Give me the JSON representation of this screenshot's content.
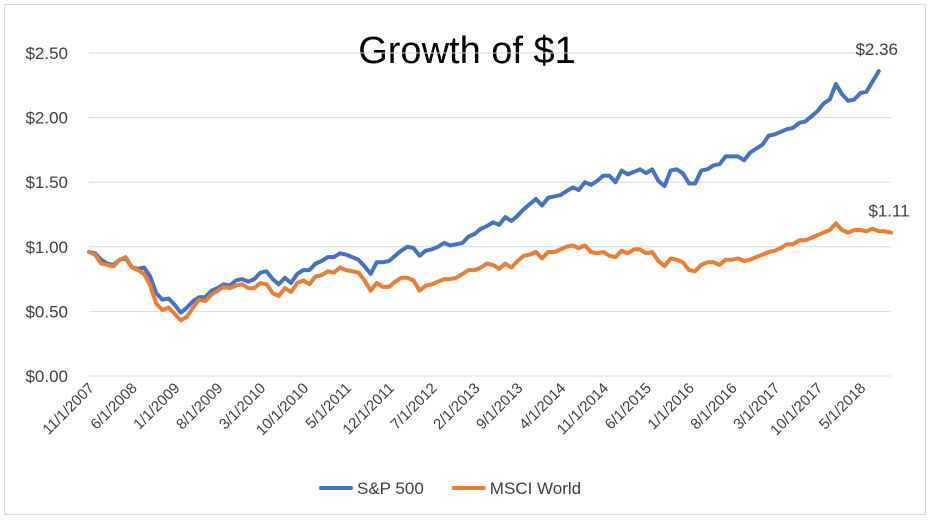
{
  "chart_data": {
    "type": "line",
    "title": "Growth of $1",
    "xlabel": "",
    "ylabel": "",
    "ylim": [
      0,
      2.5
    ],
    "y_ticks": [
      "$0.00",
      "$0.50",
      "$1.00",
      "$1.50",
      "$2.00",
      "$2.50"
    ],
    "y_tick_values": [
      0,
      0.5,
      1.0,
      1.5,
      2.0,
      2.5
    ],
    "x_start": "11/1/2007",
    "x_end": "10/1/2018",
    "x_ticks": [
      "11/1/2007",
      "6/1/2008",
      "1/1/2009",
      "8/1/2009",
      "3/1/2010",
      "10/1/2010",
      "5/1/2011",
      "12/1/2011",
      "7/1/2012",
      "2/1/2013",
      "9/1/2013",
      "4/1/2014",
      "11/1/2014",
      "6/1/2015",
      "1/1/2016",
      "8/1/2016",
      "3/1/2017",
      "10/1/2017",
      "5/1/2018"
    ],
    "grid": "horizontal",
    "legend": "bottom",
    "series": [
      {
        "name": "S&P 500",
        "color": "#4472C4",
        "end_label": "$2.36",
        "points": [
          [
            "11/1/2007",
            0.96
          ],
          [
            "12/1/2007",
            0.95
          ],
          [
            "1/1/2008",
            0.9
          ],
          [
            "2/1/2008",
            0.87
          ],
          [
            "3/1/2008",
            0.86
          ],
          [
            "4/1/2008",
            0.9
          ],
          [
            "5/1/2008",
            0.91
          ],
          [
            "6/1/2008",
            0.84
          ],
          [
            "7/1/2008",
            0.83
          ],
          [
            "8/1/2008",
            0.84
          ],
          [
            "9/1/2008",
            0.77
          ],
          [
            "10/1/2008",
            0.64
          ],
          [
            "11/1/2008",
            0.59
          ],
          [
            "12/1/2008",
            0.6
          ],
          [
            "1/1/2009",
            0.55
          ],
          [
            "2/1/2009",
            0.49
          ],
          [
            "3/1/2009",
            0.53
          ],
          [
            "4/1/2009",
            0.58
          ],
          [
            "5/1/2009",
            0.61
          ],
          [
            "6/1/2009",
            0.61
          ],
          [
            "7/1/2009",
            0.66
          ],
          [
            "8/1/2009",
            0.68
          ],
          [
            "9/1/2009",
            0.71
          ],
          [
            "10/1/2009",
            0.7
          ],
          [
            "11/1/2009",
            0.74
          ],
          [
            "12/1/2009",
            0.75
          ],
          [
            "1/1/2010",
            0.73
          ],
          [
            "2/1/2010",
            0.75
          ],
          [
            "3/1/2010",
            0.8
          ],
          [
            "4/1/2010",
            0.81
          ],
          [
            "5/1/2010",
            0.75
          ],
          [
            "6/1/2010",
            0.71
          ],
          [
            "7/1/2010",
            0.76
          ],
          [
            "8/1/2010",
            0.72
          ],
          [
            "9/1/2010",
            0.79
          ],
          [
            "10/1/2010",
            0.82
          ],
          [
            "11/1/2010",
            0.82
          ],
          [
            "12/1/2010",
            0.87
          ],
          [
            "1/1/2011",
            0.89
          ],
          [
            "2/1/2011",
            0.92
          ],
          [
            "3/1/2011",
            0.92
          ],
          [
            "4/1/2011",
            0.95
          ],
          [
            "5/1/2011",
            0.94
          ],
          [
            "6/1/2011",
            0.92
          ],
          [
            "7/1/2011",
            0.9
          ],
          [
            "8/1/2011",
            0.85
          ],
          [
            "9/1/2011",
            0.79
          ],
          [
            "10/1/2011",
            0.88
          ],
          [
            "11/1/2011",
            0.88
          ],
          [
            "12/1/2011",
            0.89
          ],
          [
            "1/1/2012",
            0.93
          ],
          [
            "2/1/2012",
            0.97
          ],
          [
            "3/1/2012",
            1.0
          ],
          [
            "4/1/2012",
            0.99
          ],
          [
            "5/1/2012",
            0.93
          ],
          [
            "6/1/2012",
            0.97
          ],
          [
            "7/1/2012",
            0.98
          ],
          [
            "8/1/2012",
            1.0
          ],
          [
            "9/1/2012",
            1.03
          ],
          [
            "10/1/2012",
            1.01
          ],
          [
            "11/1/2012",
            1.02
          ],
          [
            "12/1/2012",
            1.03
          ],
          [
            "1/1/2013",
            1.08
          ],
          [
            "2/1/2013",
            1.1
          ],
          [
            "3/1/2013",
            1.14
          ],
          [
            "4/1/2013",
            1.16
          ],
          [
            "5/1/2013",
            1.19
          ],
          [
            "6/1/2013",
            1.17
          ],
          [
            "7/1/2013",
            1.23
          ],
          [
            "8/1/2013",
            1.2
          ],
          [
            "9/1/2013",
            1.24
          ],
          [
            "10/1/2013",
            1.29
          ],
          [
            "11/1/2013",
            1.33
          ],
          [
            "12/1/2013",
            1.37
          ],
          [
            "1/1/2014",
            1.32
          ],
          [
            "2/1/2014",
            1.38
          ],
          [
            "3/1/2014",
            1.39
          ],
          [
            "4/1/2014",
            1.4
          ],
          [
            "5/1/2014",
            1.43
          ],
          [
            "6/1/2014",
            1.46
          ],
          [
            "7/1/2014",
            1.44
          ],
          [
            "8/1/2014",
            1.5
          ],
          [
            "9/1/2014",
            1.48
          ],
          [
            "10/1/2014",
            1.51
          ],
          [
            "11/1/2014",
            1.55
          ],
          [
            "12/1/2014",
            1.55
          ],
          [
            "1/1/2015",
            1.5
          ],
          [
            "2/1/2015",
            1.59
          ],
          [
            "3/1/2015",
            1.56
          ],
          [
            "4/1/2015",
            1.58
          ],
          [
            "5/1/2015",
            1.6
          ],
          [
            "6/1/2015",
            1.57
          ],
          [
            "7/1/2015",
            1.6
          ],
          [
            "8/1/2015",
            1.51
          ],
          [
            "9/1/2015",
            1.47
          ],
          [
            "10/1/2015",
            1.59
          ],
          [
            "11/1/2015",
            1.6
          ],
          [
            "12/1/2015",
            1.57
          ],
          [
            "1/1/2016",
            1.49
          ],
          [
            "2/1/2016",
            1.49
          ],
          [
            "3/1/2016",
            1.59
          ],
          [
            "4/1/2016",
            1.6
          ],
          [
            "5/1/2016",
            1.63
          ],
          [
            "6/1/2016",
            1.64
          ],
          [
            "7/1/2016",
            1.7
          ],
          [
            "8/1/2016",
            1.7
          ],
          [
            "9/1/2016",
            1.7
          ],
          [
            "10/1/2016",
            1.67
          ],
          [
            "11/1/2016",
            1.73
          ],
          [
            "12/1/2016",
            1.76
          ],
          [
            "1/1/2017",
            1.79
          ],
          [
            "2/1/2017",
            1.86
          ],
          [
            "3/1/2017",
            1.87
          ],
          [
            "4/1/2017",
            1.89
          ],
          [
            "5/1/2017",
            1.91
          ],
          [
            "6/1/2017",
            1.92
          ],
          [
            "7/1/2017",
            1.96
          ],
          [
            "8/1/2017",
            1.97
          ],
          [
            "9/1/2017",
            2.01
          ],
          [
            "10/1/2017",
            2.05
          ],
          [
            "11/1/2017",
            2.11
          ],
          [
            "12/1/2017",
            2.14
          ],
          [
            "1/1/2018",
            2.26
          ],
          [
            "2/1/2018",
            2.18
          ],
          [
            "3/1/2018",
            2.13
          ],
          [
            "4/1/2018",
            2.14
          ],
          [
            "5/1/2018",
            2.19
          ],
          [
            "6/1/2018",
            2.2
          ],
          [
            "7/1/2018",
            2.28
          ],
          [
            "8/1/2018",
            2.36
          ]
        ]
      },
      {
        "name": "MSCI World",
        "color": "#ED7D31",
        "end_label": "$1.11",
        "points": [
          [
            "11/1/2007",
            0.96
          ],
          [
            "12/1/2007",
            0.94
          ],
          [
            "1/1/2008",
            0.87
          ],
          [
            "2/1/2008",
            0.86
          ],
          [
            "3/1/2008",
            0.85
          ],
          [
            "4/1/2008",
            0.9
          ],
          [
            "5/1/2008",
            0.92
          ],
          [
            "6/1/2008",
            0.84
          ],
          [
            "7/1/2008",
            0.82
          ],
          [
            "8/1/2008",
            0.79
          ],
          [
            "9/1/2008",
            0.7
          ],
          [
            "10/1/2008",
            0.56
          ],
          [
            "11/1/2008",
            0.51
          ],
          [
            "12/1/2008",
            0.53
          ],
          [
            "1/1/2009",
            0.48
          ],
          [
            "2/1/2009",
            0.43
          ],
          [
            "3/1/2009",
            0.46
          ],
          [
            "4/1/2009",
            0.53
          ],
          [
            "5/1/2009",
            0.59
          ],
          [
            "6/1/2009",
            0.58
          ],
          [
            "7/1/2009",
            0.63
          ],
          [
            "8/1/2009",
            0.66
          ],
          [
            "9/1/2009",
            0.69
          ],
          [
            "10/1/2009",
            0.68
          ],
          [
            "11/1/2009",
            0.7
          ],
          [
            "12/1/2009",
            0.71
          ],
          [
            "1/1/2010",
            0.68
          ],
          [
            "2/1/2010",
            0.68
          ],
          [
            "3/1/2010",
            0.72
          ],
          [
            "4/1/2010",
            0.71
          ],
          [
            "5/1/2010",
            0.64
          ],
          [
            "6/1/2010",
            0.62
          ],
          [
            "7/1/2010",
            0.68
          ],
          [
            "8/1/2010",
            0.65
          ],
          [
            "9/1/2010",
            0.72
          ],
          [
            "10/1/2010",
            0.74
          ],
          [
            "11/1/2010",
            0.71
          ],
          [
            "12/1/2010",
            0.77
          ],
          [
            "1/1/2011",
            0.78
          ],
          [
            "2/1/2011",
            0.81
          ],
          [
            "3/1/2011",
            0.8
          ],
          [
            "4/1/2011",
            0.84
          ],
          [
            "5/1/2011",
            0.82
          ],
          [
            "6/1/2011",
            0.81
          ],
          [
            "7/1/2011",
            0.8
          ],
          [
            "8/1/2011",
            0.74
          ],
          [
            "9/1/2011",
            0.66
          ],
          [
            "10/1/2011",
            0.72
          ],
          [
            "11/1/2011",
            0.69
          ],
          [
            "12/1/2011",
            0.69
          ],
          [
            "1/1/2012",
            0.73
          ],
          [
            "2/1/2012",
            0.76
          ],
          [
            "3/1/2012",
            0.76
          ],
          [
            "4/1/2012",
            0.74
          ],
          [
            "5/1/2012",
            0.66
          ],
          [
            "6/1/2012",
            0.7
          ],
          [
            "7/1/2012",
            0.71
          ],
          [
            "8/1/2012",
            0.73
          ],
          [
            "9/1/2012",
            0.75
          ],
          [
            "10/1/2012",
            0.75
          ],
          [
            "11/1/2012",
            0.76
          ],
          [
            "12/1/2012",
            0.79
          ],
          [
            "1/1/2013",
            0.82
          ],
          [
            "2/1/2013",
            0.82
          ],
          [
            "3/1/2013",
            0.84
          ],
          [
            "4/1/2013",
            0.87
          ],
          [
            "5/1/2013",
            0.86
          ],
          [
            "6/1/2013",
            0.83
          ],
          [
            "7/1/2013",
            0.87
          ],
          [
            "8/1/2013",
            0.84
          ],
          [
            "9/1/2013",
            0.89
          ],
          [
            "10/1/2013",
            0.93
          ],
          [
            "11/1/2013",
            0.94
          ],
          [
            "12/1/2013",
            0.96
          ],
          [
            "1/1/2014",
            0.91
          ],
          [
            "2/1/2014",
            0.96
          ],
          [
            "3/1/2014",
            0.96
          ],
          [
            "4/1/2014",
            0.98
          ],
          [
            "5/1/2014",
            1.0
          ],
          [
            "6/1/2014",
            1.01
          ],
          [
            "7/1/2014",
            0.99
          ],
          [
            "8/1/2014",
            1.01
          ],
          [
            "9/1/2014",
            0.96
          ],
          [
            "10/1/2014",
            0.95
          ],
          [
            "11/1/2014",
            0.96
          ],
          [
            "12/1/2014",
            0.93
          ],
          [
            "1/1/2015",
            0.92
          ],
          [
            "2/1/2015",
            0.97
          ],
          [
            "3/1/2015",
            0.95
          ],
          [
            "4/1/2015",
            0.98
          ],
          [
            "5/1/2015",
            0.98
          ],
          [
            "6/1/2015",
            0.95
          ],
          [
            "7/1/2015",
            0.96
          ],
          [
            "8/1/2015",
            0.89
          ],
          [
            "9/1/2015",
            0.85
          ],
          [
            "10/1/2015",
            0.91
          ],
          [
            "11/1/2015",
            0.9
          ],
          [
            "12/1/2015",
            0.88
          ],
          [
            "1/1/2016",
            0.82
          ],
          [
            "2/1/2016",
            0.81
          ],
          [
            "3/1/2016",
            0.86
          ],
          [
            "4/1/2016",
            0.88
          ],
          [
            "5/1/2016",
            0.88
          ],
          [
            "6/1/2016",
            0.86
          ],
          [
            "7/1/2016",
            0.9
          ],
          [
            "8/1/2016",
            0.9
          ],
          [
            "9/1/2016",
            0.91
          ],
          [
            "10/1/2016",
            0.89
          ],
          [
            "11/1/2016",
            0.9
          ],
          [
            "12/1/2016",
            0.92
          ],
          [
            "1/1/2017",
            0.94
          ],
          [
            "2/1/2017",
            0.96
          ],
          [
            "3/1/2017",
            0.97
          ],
          [
            "4/1/2017",
            0.99
          ],
          [
            "5/1/2017",
            1.02
          ],
          [
            "6/1/2017",
            1.02
          ],
          [
            "7/1/2017",
            1.05
          ],
          [
            "8/1/2017",
            1.05
          ],
          [
            "9/1/2017",
            1.07
          ],
          [
            "10/1/2017",
            1.09
          ],
          [
            "11/1/2017",
            1.11
          ],
          [
            "12/1/2017",
            1.13
          ],
          [
            "1/1/2018",
            1.18
          ],
          [
            "2/1/2018",
            1.13
          ],
          [
            "3/1/2018",
            1.11
          ],
          [
            "4/1/2018",
            1.13
          ],
          [
            "5/1/2018",
            1.13
          ],
          [
            "6/1/2018",
            1.12
          ],
          [
            "7/1/2018",
            1.14
          ],
          [
            "8/1/2018",
            1.12
          ],
          [
            "9/1/2018",
            1.12
          ],
          [
            "10/1/2018",
            1.11
          ]
        ]
      }
    ]
  }
}
